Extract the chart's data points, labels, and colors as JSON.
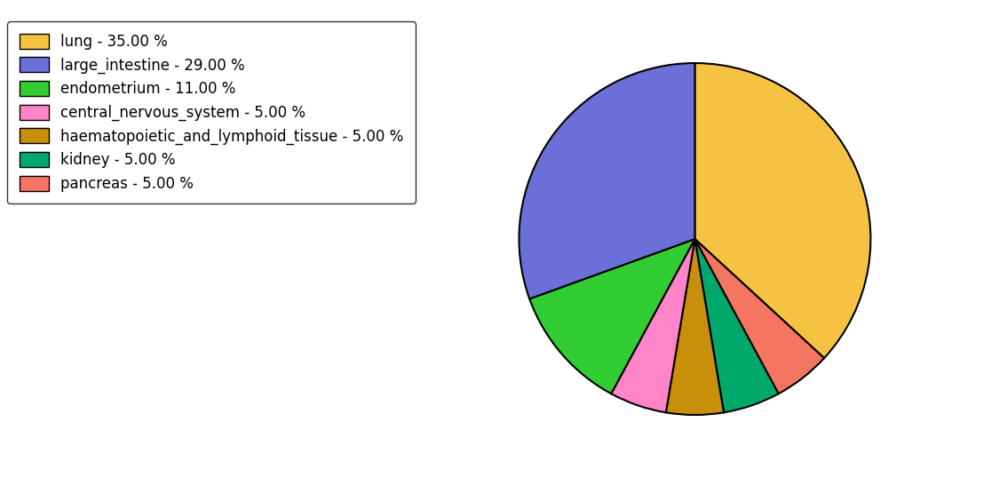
{
  "labels": [
    "lung - 35.00 %",
    "large_intestine - 29.00 %",
    "endometrium - 11.00 %",
    "central_nervous_system - 5.00 %",
    "haematopoietic_and_lymphoid_tissue - 5.00 %",
    "kidney - 5.00 %",
    "pancreas - 5.00 %"
  ],
  "values": [
    35,
    29,
    11,
    5,
    5,
    5,
    5
  ],
  "colors": [
    "#F5C242",
    "#6B70D8",
    "#32CD32",
    "#FF85C8",
    "#C8900A",
    "#00A86B",
    "#F47560"
  ],
  "pie_order": [
    0,
    6,
    5,
    4,
    3,
    2,
    1
  ],
  "startangle": 90,
  "figsize": [
    11.34,
    5.38
  ],
  "dpi": 100,
  "legend_fontsize": 12
}
